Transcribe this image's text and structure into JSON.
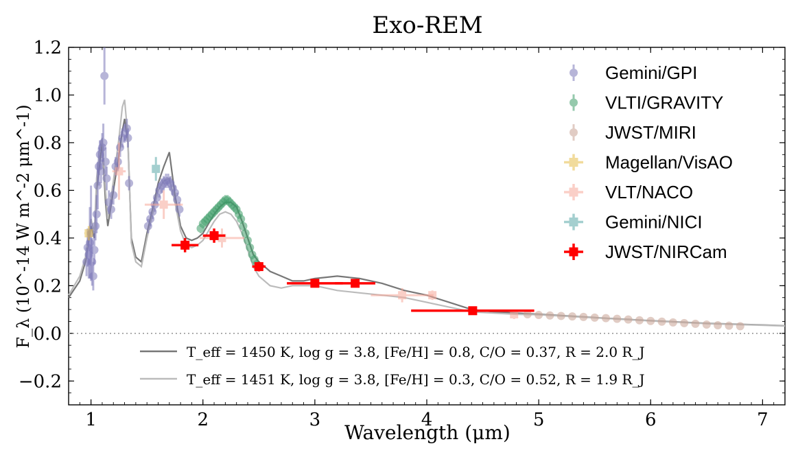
{
  "chart_data": {
    "type": "scatter",
    "title": "Exo-REM",
    "xlabel": "Wavelength (μm)",
    "ylabel": "F_λ (10^-14 W m^-2 μm^-1)",
    "xlim": [
      0.8,
      7.2
    ],
    "ylim": [
      -0.3,
      1.2
    ],
    "x_ticks": [
      1,
      2,
      3,
      4,
      5,
      6,
      7
    ],
    "y_ticks": [
      -0.2,
      0.0,
      0.2,
      0.4,
      0.6,
      0.8,
      1.0,
      1.2
    ],
    "x_tick_labels": [
      "1",
      "2",
      "3",
      "4",
      "5",
      "6",
      "7"
    ],
    "y_tick_labels": [
      "−0.2",
      "0.0",
      "0.2",
      "0.4",
      "0.6",
      "0.8",
      "1.0",
      "1.2"
    ],
    "grid": false,
    "zero_line": true,
    "legend_position": "top-right",
    "colors": {
      "gpi": "#7d79b9",
      "gravity": "#3f9e6a",
      "miri": "#c9a394",
      "visao": "#e6be4d",
      "naco": "#f7a89a",
      "nici": "#5aa9a8",
      "nircam": "#ff0000",
      "model1": "#777777",
      "model2": "#bbbbbb"
    },
    "data_series": [
      {
        "name": "Gemini/GPI",
        "marker": "circle",
        "points": [
          [
            0.96,
            0.3,
            0.06
          ],
          [
            0.97,
            0.36,
            0.08
          ],
          [
            0.98,
            0.33,
            0.1
          ],
          [
            0.99,
            0.38,
            0.15
          ],
          [
            1.0,
            0.42,
            0.2
          ],
          [
            1.01,
            0.3,
            0.1
          ],
          [
            1.02,
            0.24,
            0.06
          ],
          [
            1.03,
            0.35,
            0.06
          ],
          [
            1.04,
            0.45,
            0.06
          ],
          [
            1.05,
            0.5,
            0.08
          ],
          [
            1.06,
            0.62,
            0.1
          ],
          [
            1.07,
            0.7,
            0.08
          ],
          [
            1.08,
            0.75,
            0.06
          ],
          [
            1.09,
            0.68,
            0.05
          ],
          [
            1.1,
            0.78,
            0.06
          ],
          [
            1.11,
            0.8,
            0.08
          ],
          [
            1.12,
            1.08,
            0.12
          ],
          [
            1.13,
            0.72,
            0.06
          ],
          [
            1.14,
            0.65,
            0.05
          ],
          [
            1.16,
            0.55,
            0.05
          ],
          [
            1.18,
            0.52,
            0.04
          ],
          [
            1.2,
            0.58,
            0.04
          ],
          [
            1.22,
            0.7,
            0.04
          ],
          [
            1.24,
            0.72,
            0.04
          ],
          [
            1.26,
            0.78,
            0.04
          ],
          [
            1.28,
            0.82,
            0.04
          ],
          [
            1.3,
            0.84,
            0.04
          ],
          [
            1.32,
            0.86,
            0.04
          ],
          [
            1.33,
            0.82,
            0.04
          ],
          [
            1.34,
            0.63,
            0.03
          ],
          [
            1.51,
            0.45,
            0.03
          ],
          [
            1.53,
            0.48,
            0.03
          ],
          [
            1.55,
            0.51,
            0.03
          ],
          [
            1.57,
            0.54,
            0.03
          ],
          [
            1.59,
            0.57,
            0.03
          ],
          [
            1.61,
            0.6,
            0.03
          ],
          [
            1.63,
            0.62,
            0.03
          ],
          [
            1.65,
            0.63,
            0.03
          ],
          [
            1.67,
            0.64,
            0.03
          ],
          [
            1.69,
            0.64,
            0.03
          ],
          [
            1.71,
            0.63,
            0.03
          ],
          [
            1.73,
            0.61,
            0.03
          ],
          [
            1.75,
            0.59,
            0.03
          ],
          [
            1.77,
            0.56,
            0.03
          ],
          [
            1.79,
            0.52,
            0.03
          ]
        ]
      },
      {
        "name": "VLTI/GRAVITY",
        "marker": "circle",
        "points": [
          [
            1.98,
            0.44,
            0.02
          ],
          [
            2.0,
            0.46,
            0.02
          ],
          [
            2.02,
            0.47,
            0.02
          ],
          [
            2.04,
            0.48,
            0.02
          ],
          [
            2.06,
            0.49,
            0.02
          ],
          [
            2.08,
            0.5,
            0.02
          ],
          [
            2.1,
            0.51,
            0.02
          ],
          [
            2.12,
            0.52,
            0.02
          ],
          [
            2.14,
            0.53,
            0.02
          ],
          [
            2.16,
            0.54,
            0.02
          ],
          [
            2.18,
            0.55,
            0.02
          ],
          [
            2.2,
            0.56,
            0.02
          ],
          [
            2.22,
            0.56,
            0.02
          ],
          [
            2.24,
            0.55,
            0.02
          ],
          [
            2.26,
            0.54,
            0.02
          ],
          [
            2.28,
            0.53,
            0.02
          ],
          [
            2.3,
            0.52,
            0.02
          ],
          [
            2.32,
            0.5,
            0.02
          ],
          [
            2.34,
            0.48,
            0.02
          ],
          [
            2.36,
            0.45,
            0.02
          ],
          [
            2.38,
            0.42,
            0.02
          ],
          [
            2.4,
            0.39,
            0.02
          ],
          [
            2.42,
            0.36,
            0.02
          ],
          [
            2.44,
            0.33,
            0.02
          ],
          [
            2.46,
            0.31,
            0.02
          ],
          [
            2.48,
            0.29,
            0.02
          ]
        ]
      },
      {
        "name": "JWST/MIRI",
        "marker": "circle",
        "points": [
          [
            4.9,
            0.08,
            0.005
          ],
          [
            5.0,
            0.077,
            0.005
          ],
          [
            5.1,
            0.075,
            0.005
          ],
          [
            5.2,
            0.073,
            0.005
          ],
          [
            5.3,
            0.071,
            0.005
          ],
          [
            5.4,
            0.069,
            0.005
          ],
          [
            5.5,
            0.066,
            0.005
          ],
          [
            5.6,
            0.064,
            0.005
          ],
          [
            5.7,
            0.061,
            0.005
          ],
          [
            5.8,
            0.058,
            0.005
          ],
          [
            5.9,
            0.055,
            0.005
          ],
          [
            6.0,
            0.052,
            0.005
          ],
          [
            6.1,
            0.049,
            0.005
          ],
          [
            6.2,
            0.046,
            0.005
          ],
          [
            6.3,
            0.043,
            0.005
          ],
          [
            6.4,
            0.04,
            0.005
          ],
          [
            6.5,
            0.037,
            0.005
          ],
          [
            6.6,
            0.034,
            0.005
          ],
          [
            6.7,
            0.032,
            0.005
          ],
          [
            6.8,
            0.03,
            0.005
          ]
        ]
      },
      {
        "name": "Magellan/VisAO",
        "marker": "square",
        "points": [
          [
            0.98,
            0.42,
            0.04,
            0.03
          ]
        ]
      },
      {
        "name": "VLT/NACO",
        "marker": "square",
        "points": [
          [
            1.25,
            0.68,
            0.06,
            0.12
          ],
          [
            1.65,
            0.54,
            0.17,
            0.06
          ],
          [
            2.17,
            0.4,
            0.2,
            0.04
          ],
          [
            3.78,
            0.16,
            0.28,
            0.03
          ],
          [
            4.05,
            0.16,
            0.02,
            0.02
          ],
          [
            4.78,
            0.08,
            0.03,
            0.02
          ]
        ]
      },
      {
        "name": "Gemini/NICI",
        "marker": "square",
        "points": [
          [
            1.58,
            0.69,
            0.02,
            0.05
          ]
        ]
      },
      {
        "name": "JWST/NIRCam",
        "marker": "plus",
        "points": [
          [
            1.84,
            0.37,
            0.12,
            0.03
          ],
          [
            2.1,
            0.41,
            0.1,
            0.03
          ],
          [
            2.5,
            0.28,
            0.06,
            0.02
          ],
          [
            3.0,
            0.21,
            0.25,
            0.01
          ],
          [
            3.36,
            0.21,
            0.18,
            0.01
          ],
          [
            4.41,
            0.095,
            0.55,
            0.008
          ]
        ]
      }
    ],
    "models": [
      {
        "label": "T_eff = 1450 K, log g = 3.8, [Fe/H] = 0.8, C/O = 0.37, R = 2.0 R_J",
        "points": [
          [
            0.8,
            0.15
          ],
          [
            0.9,
            0.22
          ],
          [
            0.95,
            0.3
          ],
          [
            1.0,
            0.45
          ],
          [
            1.03,
            0.4
          ],
          [
            1.05,
            0.6
          ],
          [
            1.08,
            0.72
          ],
          [
            1.1,
            0.8
          ],
          [
            1.13,
            0.55
          ],
          [
            1.15,
            0.45
          ],
          [
            1.2,
            0.6
          ],
          [
            1.25,
            0.75
          ],
          [
            1.28,
            0.85
          ],
          [
            1.3,
            0.9
          ],
          [
            1.33,
            0.8
          ],
          [
            1.36,
            0.4
          ],
          [
            1.4,
            0.32
          ],
          [
            1.45,
            0.3
          ],
          [
            1.5,
            0.42
          ],
          [
            1.55,
            0.52
          ],
          [
            1.6,
            0.63
          ],
          [
            1.65,
            0.7
          ],
          [
            1.7,
            0.76
          ],
          [
            1.75,
            0.58
          ],
          [
            1.8,
            0.45
          ],
          [
            1.85,
            0.4
          ],
          [
            1.9,
            0.39
          ],
          [
            1.95,
            0.4
          ],
          [
            2.0,
            0.42
          ],
          [
            2.05,
            0.46
          ],
          [
            2.1,
            0.5
          ],
          [
            2.15,
            0.53
          ],
          [
            2.2,
            0.55
          ],
          [
            2.25,
            0.55
          ],
          [
            2.3,
            0.53
          ],
          [
            2.35,
            0.47
          ],
          [
            2.4,
            0.4
          ],
          [
            2.45,
            0.33
          ],
          [
            2.5,
            0.3
          ],
          [
            2.55,
            0.28
          ],
          [
            2.6,
            0.26
          ],
          [
            2.7,
            0.24
          ],
          [
            2.8,
            0.22
          ],
          [
            2.9,
            0.22
          ],
          [
            3.0,
            0.23
          ],
          [
            3.2,
            0.24
          ],
          [
            3.4,
            0.23
          ],
          [
            3.6,
            0.21
          ],
          [
            3.8,
            0.18
          ],
          [
            4.0,
            0.16
          ],
          [
            4.2,
            0.13
          ],
          [
            4.4,
            0.1
          ],
          [
            4.6,
            0.09
          ],
          [
            4.8,
            0.085
          ],
          [
            5.0,
            0.08
          ],
          [
            5.5,
            0.066
          ],
          [
            6.0,
            0.053
          ],
          [
            6.5,
            0.042
          ],
          [
            7.0,
            0.035
          ],
          [
            7.2,
            0.032
          ]
        ]
      },
      {
        "label": "T_eff = 1451 K, log g = 3.8, [Fe/H] = 0.3, C/O = 0.52, R = 1.9 R_J",
        "points": [
          [
            0.8,
            0.16
          ],
          [
            0.9,
            0.24
          ],
          [
            0.95,
            0.32
          ],
          [
            1.0,
            0.48
          ],
          [
            1.03,
            0.42
          ],
          [
            1.05,
            0.65
          ],
          [
            1.08,
            0.78
          ],
          [
            1.1,
            0.82
          ],
          [
            1.13,
            0.6
          ],
          [
            1.15,
            0.48
          ],
          [
            1.2,
            0.64
          ],
          [
            1.25,
            0.82
          ],
          [
            1.28,
            0.95
          ],
          [
            1.3,
            0.98
          ],
          [
            1.33,
            0.82
          ],
          [
            1.36,
            0.38
          ],
          [
            1.4,
            0.3
          ],
          [
            1.45,
            0.28
          ],
          [
            1.5,
            0.4
          ],
          [
            1.55,
            0.5
          ],
          [
            1.6,
            0.6
          ],
          [
            1.65,
            0.64
          ],
          [
            1.7,
            0.65
          ],
          [
            1.75,
            0.55
          ],
          [
            1.8,
            0.43
          ],
          [
            1.85,
            0.37
          ],
          [
            1.9,
            0.36
          ],
          [
            1.95,
            0.37
          ],
          [
            2.0,
            0.39
          ],
          [
            2.05,
            0.43
          ],
          [
            2.1,
            0.47
          ],
          [
            2.15,
            0.5
          ],
          [
            2.2,
            0.51
          ],
          [
            2.25,
            0.5
          ],
          [
            2.3,
            0.47
          ],
          [
            2.35,
            0.42
          ],
          [
            2.4,
            0.35
          ],
          [
            2.45,
            0.28
          ],
          [
            2.5,
            0.24
          ],
          [
            2.55,
            0.22
          ],
          [
            2.6,
            0.2
          ],
          [
            2.7,
            0.19
          ],
          [
            2.8,
            0.2
          ],
          [
            2.9,
            0.2
          ],
          [
            3.0,
            0.2
          ],
          [
            3.2,
            0.18
          ],
          [
            3.4,
            0.17
          ],
          [
            3.6,
            0.16
          ],
          [
            3.8,
            0.15
          ],
          [
            4.0,
            0.13
          ],
          [
            4.2,
            0.11
          ],
          [
            4.4,
            0.09
          ],
          [
            4.6,
            0.085
          ],
          [
            4.8,
            0.08
          ],
          [
            5.0,
            0.078
          ],
          [
            5.5,
            0.065
          ],
          [
            6.0,
            0.052
          ],
          [
            6.5,
            0.041
          ],
          [
            7.0,
            0.034
          ],
          [
            7.2,
            0.031
          ]
        ]
      }
    ]
  }
}
